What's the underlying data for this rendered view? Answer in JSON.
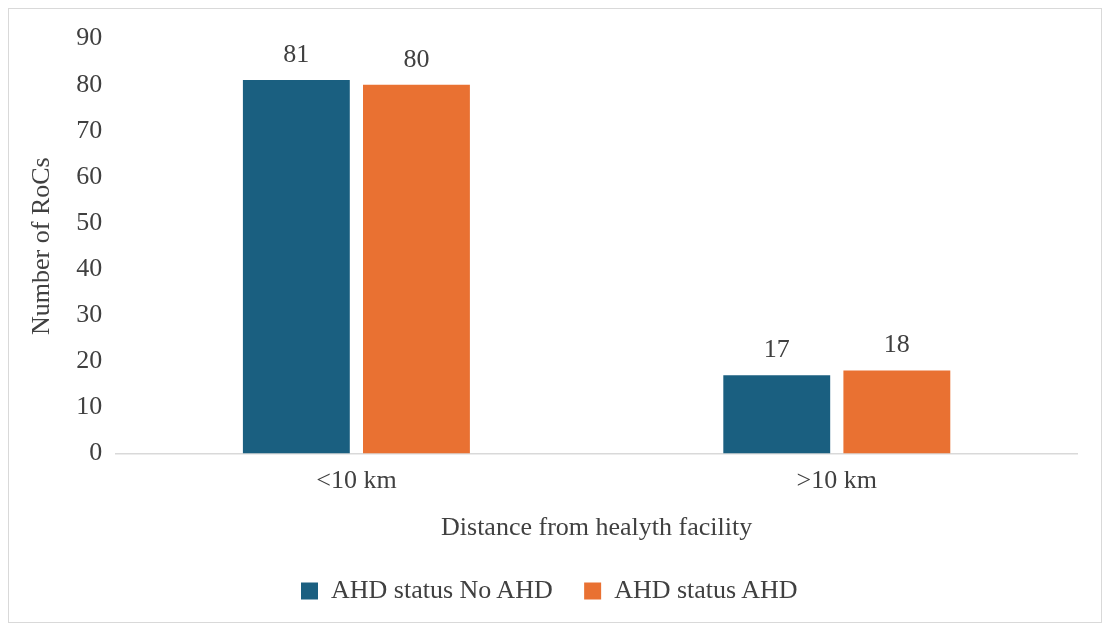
{
  "chart_data": {
    "type": "bar",
    "xlabel": "Distance from healyth facility",
    "ylabel": "Number of RoCs",
    "categories": [
      "<10 km",
      ">10 km"
    ],
    "series": [
      {
        "name": "AHD status No AHD",
        "color": "#1a5f80",
        "values": [
          81,
          17
        ]
      },
      {
        "name": "AHD status AHD",
        "color": "#e97132",
        "values": [
          80,
          18
        ]
      }
    ],
    "ylim": [
      0,
      90
    ],
    "yticks": [
      0,
      10,
      20,
      30,
      40,
      50,
      60,
      70,
      80,
      90
    ],
    "grid": false,
    "legend": "bottom",
    "data_labels": true
  }
}
